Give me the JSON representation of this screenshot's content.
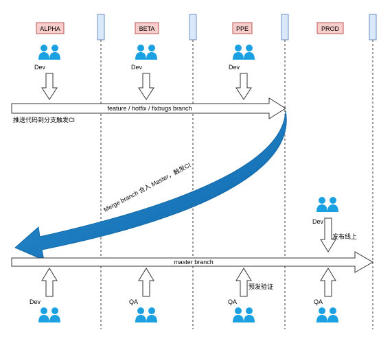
{
  "environments": [
    {
      "id": "alpha",
      "label": "ALPHA"
    },
    {
      "id": "beta",
      "label": "BETA"
    },
    {
      "id": "ppe",
      "label": "PPE"
    },
    {
      "id": "prod",
      "label": "PROD"
    }
  ],
  "top_devs": {
    "alpha": "Dev",
    "beta": "Dev",
    "ppe": "Dev"
  },
  "feature_branch": {
    "label": "feature / hotfix / fixbugs branch",
    "note": "推送代码到分支触发CI"
  },
  "merge_arrow": {
    "label": "Merge branch 合入 Master，触发CI"
  },
  "prod_release": {
    "role": "Dev",
    "note": "发布线上"
  },
  "master_branch": {
    "label": "master branch"
  },
  "bottom_roles": {
    "alpha": "Dev",
    "beta": "QA",
    "ppe": "QA",
    "prod": "QA"
  },
  "ppe_verify_note": "预发验证",
  "colors": {
    "env_box_fill": "#f8cecc",
    "env_box_stroke": "#b85450",
    "lane_box_fill": "#dae8fc",
    "lane_box_stroke": "#6c8ebf",
    "person_icon": "#1ba1e2",
    "merge_arrow": "#1f7fc4"
  }
}
